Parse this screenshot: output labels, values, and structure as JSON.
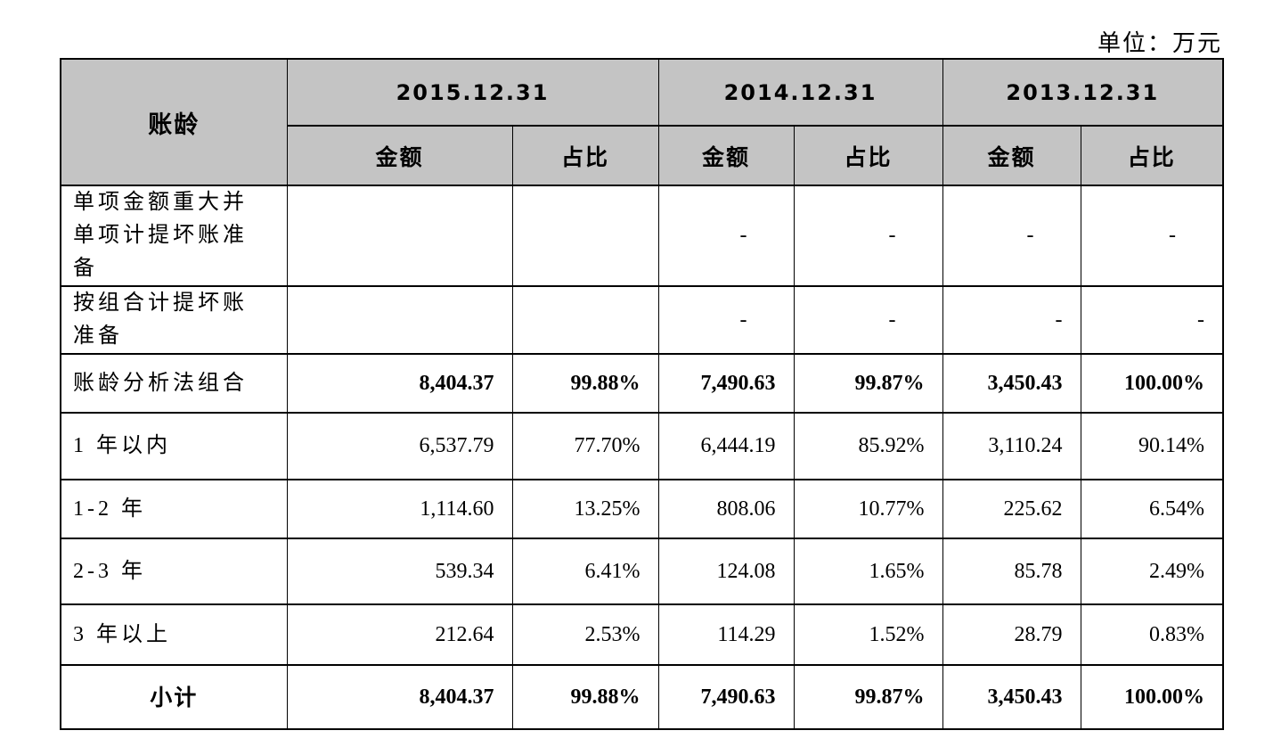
{
  "page": {
    "unit_label": "单位：万元"
  },
  "table": {
    "corner_header": "账龄",
    "periods": [
      "2015.12.31",
      "2014.12.31",
      "2013.12.31"
    ],
    "measures": [
      "金额",
      "占比"
    ],
    "rows": [
      {
        "label": "单项金额重大并单项计提坏账准备",
        "label_style": "left",
        "bold": false,
        "cells": [
          {
            "v": "",
            "align": "right"
          },
          {
            "v": "",
            "align": "right"
          },
          {
            "v": "-",
            "align": "mid"
          },
          {
            "v": "-",
            "align": "mid"
          },
          {
            "v": "-",
            "align": "mid"
          },
          {
            "v": "-",
            "align": "mid"
          }
        ]
      },
      {
        "label": "按组合计提坏账准备",
        "label_style": "left",
        "bold": false,
        "cells": [
          {
            "v": "",
            "align": "right"
          },
          {
            "v": "",
            "align": "right"
          },
          {
            "v": "-",
            "align": "mid"
          },
          {
            "v": "-",
            "align": "mid"
          },
          {
            "v": "-",
            "align": "right"
          },
          {
            "v": "-",
            "align": "right"
          }
        ]
      },
      {
        "label": "账龄分析法组合",
        "label_style": "left",
        "bold": true,
        "cells": [
          {
            "v": "8,404.37",
            "align": "right"
          },
          {
            "v": "99.88%",
            "align": "right"
          },
          {
            "v": "7,490.63",
            "align": "right"
          },
          {
            "v": "99.87%",
            "align": "right"
          },
          {
            "v": "3,450.43",
            "align": "right"
          },
          {
            "v": "100.00%",
            "align": "right"
          }
        ]
      },
      {
        "label": "1 年以内",
        "label_style": "left",
        "bold": false,
        "cells": [
          {
            "v": "6,537.79",
            "align": "right"
          },
          {
            "v": "77.70%",
            "align": "right"
          },
          {
            "v": "6,444.19",
            "align": "right"
          },
          {
            "v": "85.92%",
            "align": "right"
          },
          {
            "v": "3,110.24",
            "align": "right"
          },
          {
            "v": "90.14%",
            "align": "right"
          }
        ]
      },
      {
        "label": "1-2 年",
        "label_style": "left",
        "bold": false,
        "cells": [
          {
            "v": "1,114.60",
            "align": "right"
          },
          {
            "v": "13.25%",
            "align": "right"
          },
          {
            "v": "808.06",
            "align": "right"
          },
          {
            "v": "10.77%",
            "align": "right"
          },
          {
            "v": "225.62",
            "align": "right"
          },
          {
            "v": "6.54%",
            "align": "right"
          }
        ]
      },
      {
        "label": "2-3 年",
        "label_style": "left",
        "bold": false,
        "cells": [
          {
            "v": "539.34",
            "align": "right"
          },
          {
            "v": "6.41%",
            "align": "right"
          },
          {
            "v": "124.08",
            "align": "right"
          },
          {
            "v": "1.65%",
            "align": "right"
          },
          {
            "v": "85.78",
            "align": "right"
          },
          {
            "v": "2.49%",
            "align": "right"
          }
        ]
      },
      {
        "label": "3 年以上",
        "label_style": "left",
        "bold": false,
        "cells": [
          {
            "v": "212.64",
            "align": "right"
          },
          {
            "v": "2.53%",
            "align": "right"
          },
          {
            "v": "114.29",
            "align": "right"
          },
          {
            "v": "1.52%",
            "align": "right"
          },
          {
            "v": "28.79",
            "align": "right"
          },
          {
            "v": "0.83%",
            "align": "right"
          }
        ]
      },
      {
        "label": "小计",
        "label_style": "center-bold",
        "bold": true,
        "cells": [
          {
            "v": "8,404.37",
            "align": "right"
          },
          {
            "v": "99.88%",
            "align": "right"
          },
          {
            "v": "7,490.63",
            "align": "right"
          },
          {
            "v": "99.87%",
            "align": "right"
          },
          {
            "v": "3,450.43",
            "align": "right"
          },
          {
            "v": "100.00%",
            "align": "right"
          }
        ]
      }
    ],
    "colors": {
      "header_bg": "#c4c4c4",
      "border": "#000000"
    }
  }
}
